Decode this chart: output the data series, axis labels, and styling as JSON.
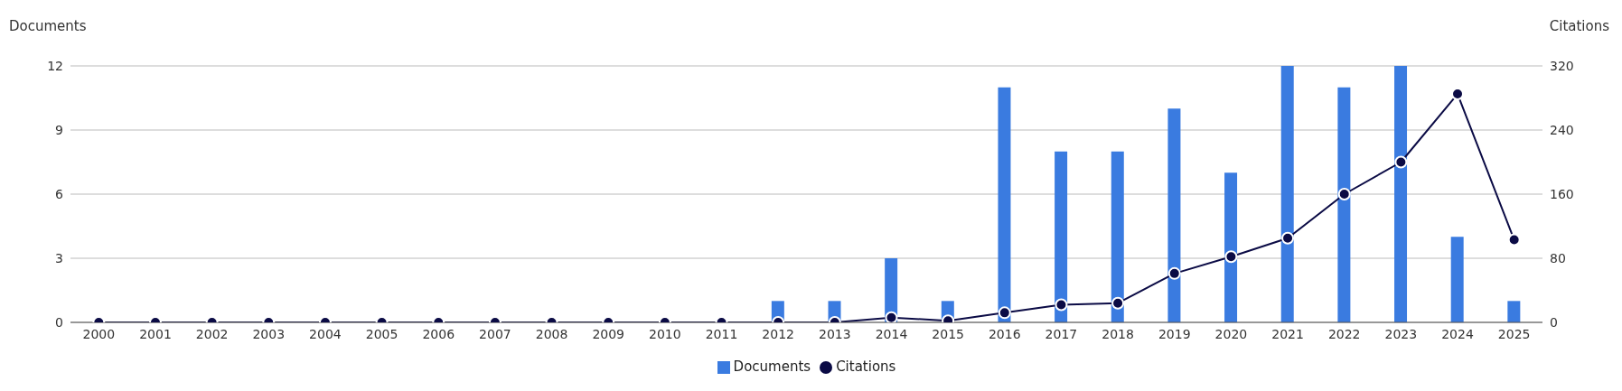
{
  "chart_data": {
    "type": "bar",
    "ylabel": "Documents",
    "y2label": "Citations",
    "categories": [
      "2000",
      "2001",
      "2002",
      "2003",
      "2004",
      "2005",
      "2006",
      "2007",
      "2008",
      "2009",
      "2010",
      "2011",
      "2012",
      "2013",
      "2014",
      "2015",
      "2016",
      "2017",
      "2018",
      "2019",
      "2020",
      "2021",
      "2022",
      "2023",
      "2024",
      "2025"
    ],
    "series": [
      {
        "name": "Documents",
        "color": "#3a7be0",
        "values": [
          0,
          0,
          0,
          0,
          0,
          0,
          0,
          0,
          0,
          0,
          0,
          0,
          1,
          1,
          3,
          1,
          11,
          8,
          8,
          10,
          7,
          12,
          11,
          12,
          4,
          1
        ]
      },
      {
        "name": "Citations",
        "type": "line",
        "axis": "y2",
        "color": "#0b0b45",
        "values": [
          0,
          0,
          0,
          0,
          0,
          0,
          0,
          0,
          0,
          0,
          0,
          0,
          0,
          0,
          6,
          2,
          12,
          22,
          24,
          61,
          82,
          105,
          160,
          200,
          285,
          103
        ]
      }
    ],
    "ylim": [
      0,
      12
    ],
    "yticks": [
      0,
      3,
      6,
      9,
      12
    ],
    "y2lim": [
      0,
      320
    ],
    "y2ticks": [
      0,
      80,
      160,
      240,
      320
    ],
    "grid": "y",
    "legend": "bottom",
    "marker": "circle",
    "line_style": "solid"
  }
}
